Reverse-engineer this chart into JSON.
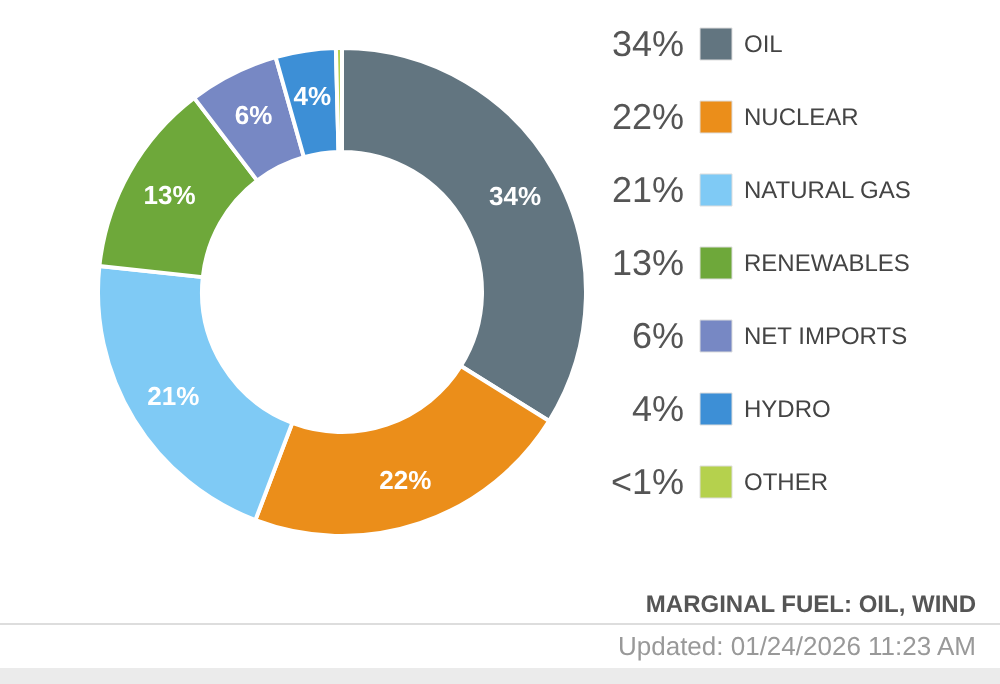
{
  "chart_data": {
    "type": "donut",
    "categories": [
      "OIL",
      "NUCLEAR",
      "NATURAL GAS",
      "RENEWABLES",
      "NET IMPORTS",
      "HYDRO",
      "OTHER"
    ],
    "values": [
      34,
      22,
      21,
      13,
      6,
      4,
      0.4
    ],
    "value_labels": [
      "34%",
      "22%",
      "21%",
      "13%",
      "6%",
      "4%",
      "<1%"
    ],
    "colors": [
      "#627580",
      "#eb8e1a",
      "#7fcaf5",
      "#6ea83a",
      "#7788c4",
      "#3d8fd6",
      "#b5d14d"
    ],
    "legend": "right",
    "annotations": [
      "MARGINAL FUEL: OIL, WIND",
      "Updated: 01/24/2026 11:23 AM"
    ]
  }
}
